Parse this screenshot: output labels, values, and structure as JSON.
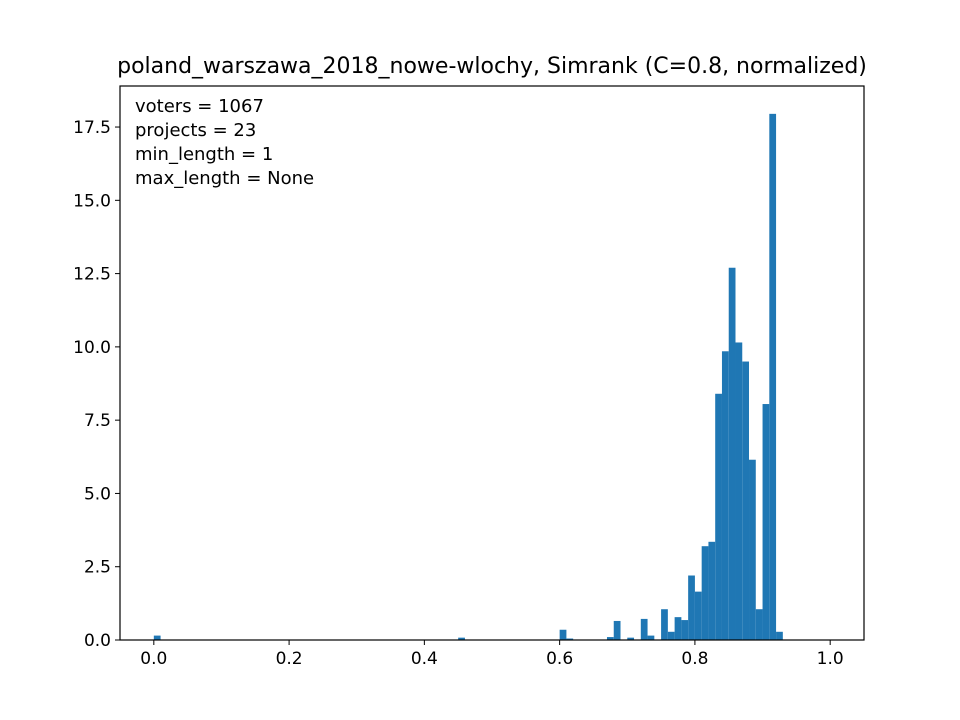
{
  "chart_data": {
    "type": "bar",
    "title": "poland_warszawa_2018_nowe-wlochy, Simrank (C=0.8, normalized)",
    "xlabel": "",
    "ylabel": "",
    "xlim": [
      -0.05,
      1.05
    ],
    "ylim": [
      0,
      18.9
    ],
    "grid": false,
    "bar_color": "#1f77b4",
    "bin_width": 0.01,
    "x_ticks": [
      0.0,
      0.2,
      0.4,
      0.6,
      0.8,
      1.0
    ],
    "x_tick_labels": [
      "0.0",
      "0.2",
      "0.4",
      "0.6",
      "0.8",
      "1.0"
    ],
    "y_ticks": [
      0.0,
      2.5,
      5.0,
      7.5,
      10.0,
      12.5,
      15.0,
      17.5
    ],
    "y_tick_labels": [
      "0.0",
      "2.5",
      "5.0",
      "7.5",
      "10.0",
      "12.5",
      "15.0",
      "17.5"
    ],
    "annotations": [
      "voters = 1067",
      "projects = 23",
      "min_length = 1",
      "max_length = None"
    ],
    "bins": [
      {
        "x": 0.0,
        "value": 0.15
      },
      {
        "x": 0.45,
        "value": 0.08
      },
      {
        "x": 0.6,
        "value": 0.35
      },
      {
        "x": 0.61,
        "value": 0.05
      },
      {
        "x": 0.67,
        "value": 0.1
      },
      {
        "x": 0.68,
        "value": 0.65
      },
      {
        "x": 0.7,
        "value": 0.08
      },
      {
        "x": 0.72,
        "value": 0.72
      },
      {
        "x": 0.73,
        "value": 0.15
      },
      {
        "x": 0.75,
        "value": 1.05
      },
      {
        "x": 0.76,
        "value": 0.28
      },
      {
        "x": 0.77,
        "value": 0.78
      },
      {
        "x": 0.78,
        "value": 0.68
      },
      {
        "x": 0.79,
        "value": 2.2
      },
      {
        "x": 0.8,
        "value": 1.65
      },
      {
        "x": 0.81,
        "value": 3.2
      },
      {
        "x": 0.82,
        "value": 3.35
      },
      {
        "x": 0.83,
        "value": 8.4
      },
      {
        "x": 0.84,
        "value": 9.85
      },
      {
        "x": 0.85,
        "value": 12.7
      },
      {
        "x": 0.86,
        "value": 10.15
      },
      {
        "x": 0.87,
        "value": 9.5
      },
      {
        "x": 0.88,
        "value": 6.15
      },
      {
        "x": 0.89,
        "value": 1.05
      },
      {
        "x": 0.9,
        "value": 8.05
      },
      {
        "x": 0.91,
        "value": 17.95
      },
      {
        "x": 0.92,
        "value": 0.28
      }
    ]
  }
}
